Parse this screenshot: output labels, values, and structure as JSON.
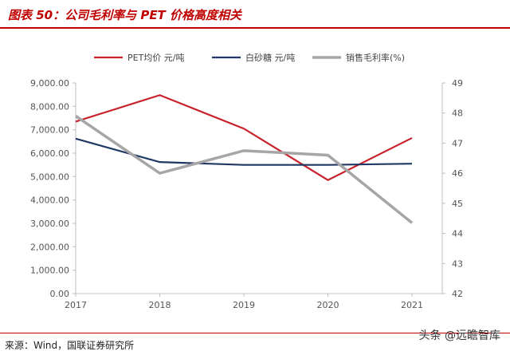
{
  "title": "图表 50：公司毛利率与 PET 价格高度相关",
  "source": "来源：Wind，国联证券研究所",
  "watermark": "头条 @远瞻智库",
  "chart_data": {
    "type": "line",
    "x": [
      "2017",
      "2018",
      "2019",
      "2020",
      "2021"
    ],
    "y_left": {
      "range": [
        0,
        9000
      ],
      "ticks": [
        "0.00",
        "1,000.00",
        "2,000.00",
        "3,000.00",
        "4,000.00",
        "5,000.00",
        "6,000.00",
        "7,000.00",
        "8,000.00",
        "9,000.00"
      ]
    },
    "y_right": {
      "range": [
        42,
        49
      ],
      "ticks": [
        "42",
        "43",
        "44",
        "45",
        "46",
        "47",
        "48",
        "49"
      ]
    },
    "legend_position": "top",
    "grid": false,
    "series": [
      {
        "name": "PET均价 元/吨",
        "axis": "left",
        "color": "#c8232c",
        "values": [
          7350,
          8480,
          7050,
          4850,
          6650
        ]
      },
      {
        "name": "白砂糖 元/吨",
        "axis": "left",
        "color": "#1f3864",
        "values": [
          6620,
          5620,
          5500,
          5500,
          5550
        ]
      },
      {
        "name": "销售毛利率(%)",
        "axis": "right",
        "color": "#a6a6a6",
        "values": [
          47.9,
          46.0,
          46.75,
          46.6,
          44.35
        ]
      }
    ]
  }
}
